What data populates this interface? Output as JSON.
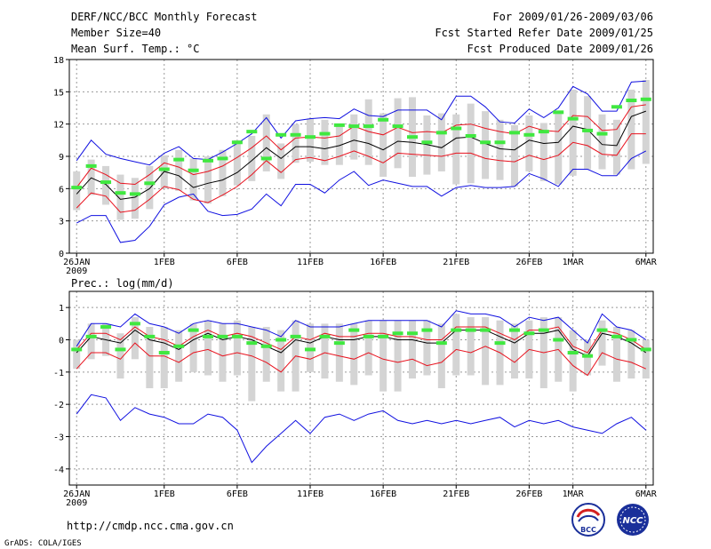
{
  "header": {
    "title": "DERF/NCC/BCC Monthly Forecast",
    "member_size": "Member Size=40",
    "variable": "Mean Surf. Temp.: °C",
    "period": "For 2009/01/26-2009/03/06",
    "start_date": "Fcst Started Refer Date 2009/01/25",
    "produced_date": "Fcst Produced Date 2009/01/26"
  },
  "footer": {
    "url": "http://cmdp.ncc.cma.gov.cn",
    "credit": "GrADS: COLA/IGES",
    "logo_bcc": "BCC",
    "logo_ncc": "NCC"
  },
  "colors": {
    "bar": "#d4d4d4",
    "mean": "#000000",
    "spread": "#e8121e",
    "envelope": "#1010e0",
    "climatology": "#40e840"
  },
  "chart_data": [
    {
      "type": "box",
      "title": "Mean Surf. Temp.: °C",
      "xlabel": "",
      "ylabel": "°C",
      "x": [
        1,
        2,
        3,
        4,
        5,
        6,
        7,
        8,
        9,
        10,
        11,
        12,
        13,
        14,
        15,
        16,
        17,
        18,
        19,
        20,
        21,
        22,
        23,
        24,
        25,
        26,
        27,
        28,
        29,
        30,
        31,
        32,
        33,
        34,
        35,
        36,
        37,
        38,
        39,
        40
      ],
      "xlim": [
        0.5,
        40.5
      ],
      "ylim": [
        0,
        18
      ],
      "yticks": [
        0,
        3,
        6,
        9,
        12,
        15,
        18
      ],
      "xticks": [
        {
          "x": 1,
          "label": "26JAN",
          "sub": "2009"
        },
        {
          "x": 7,
          "label": "1FEB"
        },
        {
          "x": 12,
          "label": "6FEB"
        },
        {
          "x": 17,
          "label": "11FEB"
        },
        {
          "x": 22,
          "label": "16FEB"
        },
        {
          "x": 27,
          "label": "21FEB"
        },
        {
          "x": 32,
          "label": "26FEB"
        },
        {
          "x": 35,
          "label": "1MAR"
        },
        {
          "x": 40,
          "label": "6MAR"
        }
      ],
      "series": [
        {
          "name": "max",
          "color_key": "envelope",
          "values": [
            8.6,
            10.5,
            9.2,
            8.8,
            8.5,
            8.2,
            9.3,
            9.9,
            8.8,
            8.7,
            9.4,
            10.2,
            11.1,
            12.6,
            10.7,
            12.3,
            12.5,
            12.6,
            12.5,
            13.4,
            12.8,
            12.7,
            13.3,
            13.3,
            13.3,
            12.4,
            14.6,
            14.6,
            13.6,
            12.2,
            12.1,
            13.4,
            12.6,
            13.5,
            15.5,
            14.8,
            13.2,
            13.2,
            15.9,
            16.0
          ]
        },
        {
          "name": "upper",
          "color_key": "spread",
          "values": [
            6.1,
            7.9,
            7.3,
            6.5,
            6.4,
            7.3,
            8.4,
            8.0,
            7.3,
            7.6,
            8.1,
            8.9,
            9.8,
            10.9,
            9.6,
            10.7,
            10.8,
            10.7,
            10.9,
            11.8,
            11.3,
            11.0,
            11.7,
            11.2,
            11.3,
            11.2,
            11.9,
            12.0,
            11.6,
            11.3,
            11.1,
            11.8,
            11.4,
            11.3,
            12.8,
            12.7,
            11.4,
            11.5,
            13.6,
            13.8
          ]
        },
        {
          "name": "mean",
          "color_key": "mean",
          "values": [
            5.5,
            7.0,
            6.4,
            5.0,
            5.2,
            6.0,
            7.6,
            7.2,
            6.1,
            6.5,
            6.8,
            7.5,
            8.6,
            9.8,
            8.8,
            9.9,
            9.9,
            9.7,
            10.0,
            10.5,
            10.2,
            9.6,
            10.4,
            10.3,
            10.1,
            9.8,
            10.7,
            10.8,
            10.2,
            9.7,
            9.6,
            10.5,
            10.2,
            10.3,
            11.8,
            11.5,
            10.1,
            10.0,
            12.7,
            13.2
          ]
        },
        {
          "name": "lower",
          "color_key": "spread",
          "values": [
            4.2,
            5.6,
            5.3,
            3.8,
            4.0,
            5.0,
            6.2,
            5.9,
            5.0,
            4.7,
            5.4,
            6.2,
            7.3,
            8.6,
            7.5,
            8.7,
            8.9,
            8.6,
            9.0,
            9.5,
            9.0,
            8.4,
            9.3,
            9.2,
            9.1,
            9.0,
            9.3,
            9.3,
            8.8,
            8.6,
            8.5,
            9.1,
            8.7,
            9.1,
            10.3,
            10.0,
            9.2,
            9.1,
            11.1,
            11.1
          ]
        },
        {
          "name": "min",
          "color_key": "envelope",
          "values": [
            2.8,
            3.5,
            3.5,
            1.0,
            1.2,
            2.5,
            4.5,
            5.2,
            5.5,
            3.9,
            3.5,
            3.6,
            4.1,
            5.5,
            4.4,
            6.4,
            6.4,
            5.6,
            6.8,
            7.6,
            6.3,
            6.8,
            6.5,
            6.2,
            6.2,
            5.3,
            6.1,
            6.3,
            6.1,
            6.1,
            6.2,
            7.4,
            6.9,
            6.2,
            7.8,
            7.8,
            7.2,
            7.2,
            8.8,
            9.5
          ]
        }
      ],
      "bars": {
        "name": "ensemble range",
        "color_key": "bar",
        "low": [
          4.0,
          5.4,
          4.5,
          3.1,
          3.2,
          4.1,
          6.0,
          5.8,
          4.9,
          4.6,
          5.3,
          6.3,
          6.7,
          7.6,
          6.9,
          8.4,
          8.5,
          8.2,
          8.2,
          8.7,
          8.2,
          7.1,
          7.9,
          7.1,
          7.3,
          7.6,
          6.4,
          6.5,
          6.9,
          6.8,
          6.2,
          7.6,
          6.7,
          6.4,
          7.2,
          7.8,
          7.8,
          7.3,
          7.8,
          8.3
        ],
        "high": [
          7.6,
          8.7,
          8.1,
          7.3,
          7.0,
          8.1,
          9.1,
          9.6,
          8.8,
          9.0,
          9.6,
          10.5,
          10.9,
          12.9,
          10.2,
          12.0,
          12.5,
          12.4,
          12.0,
          12.9,
          14.3,
          13.0,
          14.4,
          14.5,
          12.8,
          13.0,
          12.9,
          13.9,
          13.2,
          12.4,
          11.9,
          12.8,
          12.1,
          13.1,
          15.2,
          14.6,
          12.9,
          12.4,
          15.2,
          16.1
        ]
      },
      "climatology": {
        "name": "climatology",
        "color_key": "climatology",
        "values": [
          6.1,
          8.1,
          6.6,
          5.6,
          5.5,
          6.5,
          7.8,
          8.7,
          7.7,
          8.6,
          8.8,
          10.3,
          11.3,
          8.8,
          11.0,
          11.0,
          10.8,
          11.1,
          11.9,
          11.8,
          11.8,
          12.4,
          11.8,
          10.8,
          10.3,
          11.2,
          11.6,
          10.9,
          10.3,
          10.3,
          11.2,
          11.0,
          11.3,
          13.1,
          12.5,
          11.4,
          11.1,
          13.6,
          14.2,
          14.3
        ]
      }
    },
    {
      "type": "box",
      "title": "Prec.: log(mm/d)",
      "xlabel": "",
      "ylabel": "log(mm/d)",
      "x": [
        1,
        2,
        3,
        4,
        5,
        6,
        7,
        8,
        9,
        10,
        11,
        12,
        13,
        14,
        15,
        16,
        17,
        18,
        19,
        20,
        21,
        22,
        23,
        24,
        25,
        26,
        27,
        28,
        29,
        30,
        31,
        32,
        33,
        34,
        35,
        36,
        37,
        38,
        39,
        40
      ],
      "xlim": [
        0.5,
        40.5
      ],
      "ylim": [
        -4.5,
        1.5
      ],
      "yticks": [
        -4,
        -3,
        -2,
        -1,
        0,
        1
      ],
      "xticks": [
        {
          "x": 1,
          "label": "26JAN",
          "sub": "2009"
        },
        {
          "x": 7,
          "label": "1FEB"
        },
        {
          "x": 12,
          "label": "6FEB"
        },
        {
          "x": 17,
          "label": "11FEB"
        },
        {
          "x": 22,
          "label": "16FEB"
        },
        {
          "x": 27,
          "label": "21FEB"
        },
        {
          "x": 32,
          "label": "26FEB"
        },
        {
          "x": 35,
          "label": "1MAR"
        },
        {
          "x": 40,
          "label": "6MAR"
        }
      ],
      "series": [
        {
          "name": "max",
          "color_key": "envelope",
          "values": [
            -0.2,
            0.5,
            0.5,
            0.4,
            0.8,
            0.5,
            0.4,
            0.2,
            0.5,
            0.6,
            0.5,
            0.5,
            0.4,
            0.3,
            0.1,
            0.6,
            0.4,
            0.4,
            0.4,
            0.5,
            0.6,
            0.6,
            0.6,
            0.6,
            0.6,
            0.4,
            0.9,
            0.8,
            0.8,
            0.7,
            0.4,
            0.7,
            0.6,
            0.7,
            0.3,
            -0.1,
            0.8,
            0.4,
            0.3,
            0.0
          ]
        },
        {
          "name": "upper",
          "color_key": "spread",
          "values": [
            -0.3,
            0.2,
            0.2,
            0.0,
            0.4,
            0.1,
            0.0,
            -0.2,
            0.1,
            0.3,
            0.1,
            0.2,
            0.1,
            -0.1,
            -0.3,
            0.1,
            0.0,
            0.2,
            0.1,
            0.1,
            0.2,
            0.2,
            0.1,
            0.1,
            0.0,
            0.0,
            0.4,
            0.4,
            0.4,
            0.2,
            0.0,
            0.3,
            0.3,
            0.4,
            -0.2,
            -0.4,
            0.3,
            0.2,
            0.0,
            -0.3
          ]
        },
        {
          "name": "mean",
          "color_key": "mean",
          "values": [
            -0.4,
            0.1,
            0.0,
            -0.1,
            0.3,
            0.0,
            -0.1,
            -0.3,
            0.0,
            0.2,
            0.0,
            0.1,
            0.0,
            -0.2,
            -0.4,
            0.0,
            -0.1,
            0.1,
            0.0,
            0.0,
            0.1,
            0.1,
            0.0,
            0.0,
            -0.1,
            -0.1,
            0.3,
            0.3,
            0.3,
            0.1,
            -0.1,
            0.2,
            0.2,
            0.3,
            -0.3,
            -0.5,
            0.2,
            0.1,
            -0.1,
            -0.4
          ]
        },
        {
          "name": "lower",
          "color_key": "spread",
          "values": [
            -0.9,
            -0.4,
            -0.4,
            -0.6,
            -0.1,
            -0.5,
            -0.5,
            -0.7,
            -0.4,
            -0.3,
            -0.5,
            -0.4,
            -0.5,
            -0.7,
            -1.0,
            -0.5,
            -0.6,
            -0.4,
            -0.5,
            -0.6,
            -0.4,
            -0.6,
            -0.7,
            -0.6,
            -0.8,
            -0.7,
            -0.3,
            -0.4,
            -0.2,
            -0.4,
            -0.7,
            -0.3,
            -0.4,
            -0.3,
            -0.8,
            -1.1,
            -0.4,
            -0.6,
            -0.7,
            -0.9
          ]
        },
        {
          "name": "min",
          "color_key": "envelope",
          "values": [
            -2.3,
            -1.7,
            -1.8,
            -2.5,
            -2.1,
            -2.3,
            -2.4,
            -2.6,
            -2.6,
            -2.3,
            -2.4,
            -2.8,
            -3.8,
            -3.3,
            -2.9,
            -2.5,
            -2.9,
            -2.4,
            -2.3,
            -2.5,
            -2.3,
            -2.2,
            -2.5,
            -2.6,
            -2.5,
            -2.6,
            -2.5,
            -2.6,
            -2.5,
            -2.4,
            -2.7,
            -2.5,
            -2.6,
            -2.5,
            -2.7,
            -2.8,
            -2.9,
            -2.6,
            -2.4,
            -2.8
          ]
        },
        {
          "name": "climatology",
          "color_key": "climatology",
          "values": [
            -0.3,
            0.1,
            0.4,
            -0.3,
            0.5,
            0.1,
            -0.4,
            -0.2,
            0.3,
            0.1,
            0.1,
            0.1,
            -0.1,
            -0.2,
            0.0,
            0.1,
            -0.3,
            0.1,
            -0.1,
            0.3,
            0.1,
            0.1,
            0.2,
            0.2,
            0.3,
            -0.1,
            0.3,
            0.3,
            0.3,
            -0.1,
            0.3,
            0.2,
            0.3,
            0.0,
            -0.4,
            -0.5,
            0.3,
            0.1,
            0.0,
            -0.3
          ]
        }
      ],
      "bars": {
        "name": "ensemble range",
        "color_key": "bar",
        "low": [
          -0.9,
          -0.6,
          -0.5,
          -1.2,
          -0.6,
          -1.5,
          -1.5,
          -1.3,
          -1.0,
          -1.1,
          -1.3,
          -1.1,
          -1.9,
          -1.3,
          -1.6,
          -1.6,
          -1.0,
          -1.2,
          -1.3,
          -1.4,
          -1.1,
          -1.6,
          -1.6,
          -1.2,
          -1.1,
          -1.5,
          -1.1,
          -1.1,
          -1.4,
          -1.4,
          -1.2,
          -1.2,
          -1.5,
          -1.3,
          -1.6,
          -1.1,
          -0.8,
          -1.3,
          -1.2,
          -1.2
        ],
        "high": [
          0.0,
          0.5,
          0.5,
          0.2,
          0.7,
          0.4,
          0.4,
          0.3,
          0.5,
          0.6,
          0.5,
          0.6,
          0.4,
          0.4,
          0.3,
          0.6,
          0.5,
          0.5,
          0.5,
          0.5,
          0.6,
          0.6,
          0.6,
          0.6,
          0.6,
          0.5,
          0.8,
          0.7,
          0.7,
          0.6,
          0.5,
          0.6,
          0.7,
          0.7,
          0.3,
          0.0,
          0.6,
          0.4,
          0.3,
          0.0
        ]
      }
    }
  ]
}
